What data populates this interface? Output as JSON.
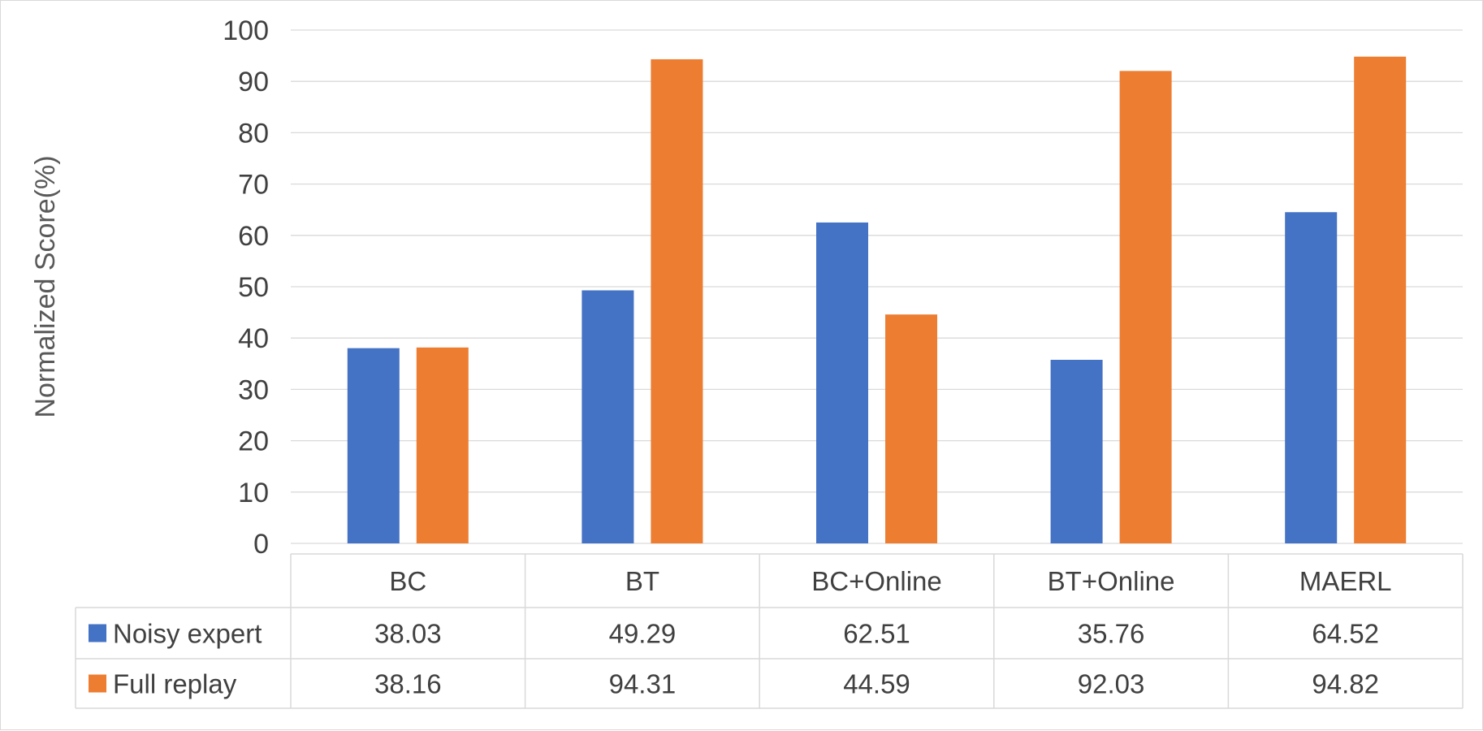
{
  "chart_data": {
    "type": "bar",
    "title": "",
    "xlabel": "",
    "ylabel": "Normalized Score(%)",
    "ylim": [
      0,
      100
    ],
    "yticks": [
      0,
      10,
      20,
      30,
      40,
      50,
      60,
      70,
      80,
      90,
      100
    ],
    "grid": true,
    "legend": "data-table",
    "categories": [
      "BC",
      "BT",
      "BC+Online",
      "BT+Online",
      "MAERL"
    ],
    "series": [
      {
        "name": "Noisy expert",
        "color": "#4472c4",
        "values": [
          38.03,
          49.29,
          62.51,
          35.76,
          64.52
        ],
        "labels": [
          "38.03",
          "49.29",
          "62.51",
          "35.76",
          "64.52"
        ]
      },
      {
        "name": "Full replay",
        "color": "#ed7d31",
        "values": [
          38.16,
          94.31,
          44.59,
          92.03,
          94.82
        ],
        "labels": [
          "38.16",
          "94.31",
          "44.59",
          "92.03",
          "94.82"
        ]
      }
    ]
  }
}
